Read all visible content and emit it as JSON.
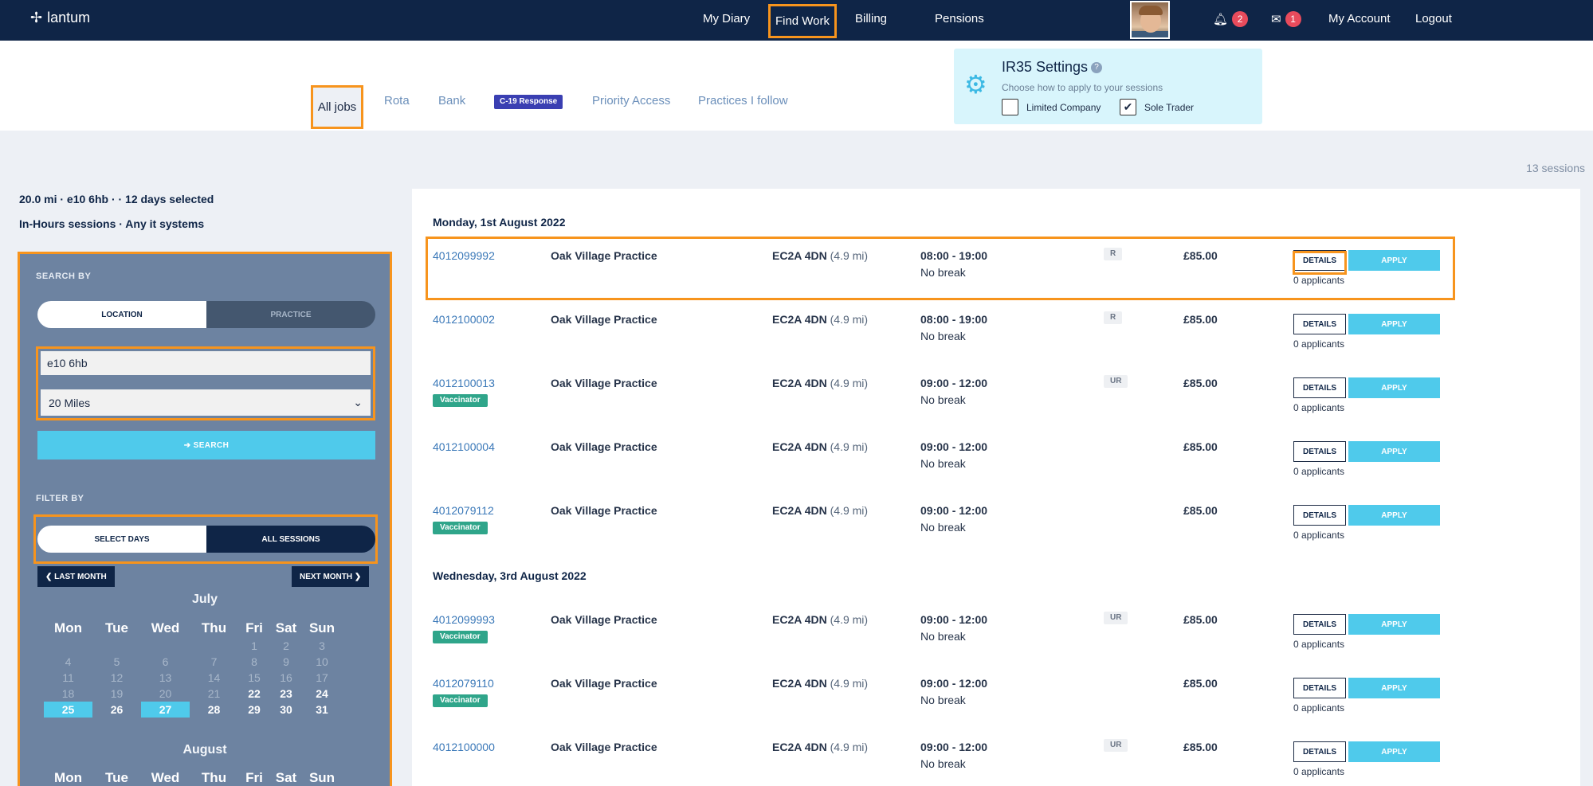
{
  "brand": "lantum",
  "nav": {
    "my_diary": "My Diary",
    "find_work": "Find Work",
    "billing": "Billing",
    "pensions": "Pensions",
    "notifications_count": "2",
    "messages_count": "1",
    "my_account": "My Account",
    "logout": "Logout"
  },
  "tabs": {
    "all_jobs": "All jobs",
    "rota": "Rota",
    "bank": "Bank",
    "c19": "C-19 Response",
    "priority_access": "Priority Access",
    "practices_follow": "Practices I follow"
  },
  "ir35": {
    "title": "IR35 Settings",
    "help": "?",
    "subtitle": "Choose how to apply to your sessions",
    "limited_company": "Limited Company",
    "sole_trader": "Sole Trader",
    "limited_checked": false,
    "sole_checked": true
  },
  "sessions_count": "13 sessions",
  "summary": {
    "line1": "20.0 mi · e10 6hb · · 12 days selected",
    "line2": "In-Hours sessions · Any it systems"
  },
  "search_panel": {
    "search_by": "SEARCH BY",
    "location": "LOCATION",
    "practice": "PRACTICE",
    "location_value": "e10 6hb",
    "radius": "20 Miles",
    "search_button": "➔ SEARCH",
    "filter_by": "FILTER BY",
    "select_days": "SELECT DAYS",
    "all_sessions": "ALL SESSIONS",
    "last_month": "❮ LAST MONTH",
    "next_month": "NEXT MONTH ❯"
  },
  "calendar": {
    "weekdays": [
      "Mon",
      "Tue",
      "Wed",
      "Thu",
      "Fri",
      "Sat",
      "Sun"
    ],
    "months": [
      {
        "name": "July",
        "weeks": [
          [
            {
              "d": "",
              "s": ""
            },
            {
              "d": "",
              "s": ""
            },
            {
              "d": "",
              "s": ""
            },
            {
              "d": "",
              "s": ""
            },
            {
              "d": "1",
              "s": "past"
            },
            {
              "d": "2",
              "s": "past"
            },
            {
              "d": "3",
              "s": "past"
            }
          ],
          [
            {
              "d": "4",
              "s": "past"
            },
            {
              "d": "5",
              "s": "past"
            },
            {
              "d": "6",
              "s": "past"
            },
            {
              "d": "7",
              "s": "past"
            },
            {
              "d": "8",
              "s": "past"
            },
            {
              "d": "9",
              "s": "past"
            },
            {
              "d": "10",
              "s": "past"
            }
          ],
          [
            {
              "d": "11",
              "s": "past"
            },
            {
              "d": "12",
              "s": "past"
            },
            {
              "d": "13",
              "s": "past"
            },
            {
              "d": "14",
              "s": "past"
            },
            {
              "d": "15",
              "s": "past"
            },
            {
              "d": "16",
              "s": "past"
            },
            {
              "d": "17",
              "s": "past"
            }
          ],
          [
            {
              "d": "18",
              "s": "past"
            },
            {
              "d": "19",
              "s": "past"
            },
            {
              "d": "20",
              "s": "past"
            },
            {
              "d": "21",
              "s": "past"
            },
            {
              "d": "22",
              "s": "avail"
            },
            {
              "d": "23",
              "s": "avail"
            },
            {
              "d": "24",
              "s": "avail"
            }
          ],
          [
            {
              "d": "25",
              "s": "sel"
            },
            {
              "d": "26",
              "s": "avail"
            },
            {
              "d": "27",
              "s": "sel"
            },
            {
              "d": "28",
              "s": "avail"
            },
            {
              "d": "29",
              "s": "avail"
            },
            {
              "d": "30",
              "s": "avail"
            },
            {
              "d": "31",
              "s": "avail"
            }
          ]
        ]
      },
      {
        "name": "August",
        "weeks": []
      }
    ]
  },
  "groups": [
    {
      "date": "Monday, 1st August 2022",
      "sessions": [
        {
          "id": "4012099992",
          "vaccinator": false,
          "practice": "Oak Village Practice",
          "postcode": "EC2A 4DN",
          "distance": "(4.9 mi)",
          "time": "08:00 - 19:00",
          "break": "No break",
          "tag": "R",
          "price": "£85.00",
          "details": "DETAILS",
          "apply": "APPLY",
          "applicants": "0 applicants"
        },
        {
          "id": "4012100002",
          "vaccinator": false,
          "practice": "Oak Village Practice",
          "postcode": "EC2A 4DN",
          "distance": "(4.9 mi)",
          "time": "08:00 - 19:00",
          "break": "No break",
          "tag": "R",
          "price": "£85.00",
          "details": "DETAILS",
          "apply": "APPLY",
          "applicants": "0 applicants"
        },
        {
          "id": "4012100013",
          "vaccinator": true,
          "practice": "Oak Village Practice",
          "postcode": "EC2A 4DN",
          "distance": "(4.9 mi)",
          "time": "09:00 - 12:00",
          "break": "No break",
          "tag": "UR",
          "price": "£85.00",
          "details": "DETAILS",
          "apply": "APPLY",
          "applicants": "0 applicants"
        },
        {
          "id": "4012100004",
          "vaccinator": false,
          "practice": "Oak Village Practice",
          "postcode": "EC2A 4DN",
          "distance": "(4.9 mi)",
          "time": "09:00 - 12:00",
          "break": "No break",
          "tag": "",
          "price": "£85.00",
          "details": "DETAILS",
          "apply": "APPLY",
          "applicants": "0 applicants"
        },
        {
          "id": "4012079112",
          "vaccinator": true,
          "practice": "Oak Village Practice",
          "postcode": "EC2A 4DN",
          "distance": "(4.9 mi)",
          "time": "09:00 - 12:00",
          "break": "No break",
          "tag": "",
          "price": "£85.00",
          "details": "DETAILS",
          "apply": "APPLY",
          "applicants": "0 applicants"
        }
      ]
    },
    {
      "date": "Wednesday, 3rd August 2022",
      "sessions": [
        {
          "id": "4012099993",
          "vaccinator": true,
          "practice": "Oak Village Practice",
          "postcode": "EC2A 4DN",
          "distance": "(4.9 mi)",
          "time": "09:00 - 12:00",
          "break": "No break",
          "tag": "UR",
          "price": "£85.00",
          "details": "DETAILS",
          "apply": "APPLY",
          "applicants": "0 applicants"
        },
        {
          "id": "4012079110",
          "vaccinator": true,
          "practice": "Oak Village Practice",
          "postcode": "EC2A 4DN",
          "distance": "(4.9 mi)",
          "time": "09:00 - 12:00",
          "break": "No break",
          "tag": "",
          "price": "£85.00",
          "details": "DETAILS",
          "apply": "APPLY",
          "applicants": "0 applicants"
        },
        {
          "id": "4012100000",
          "vaccinator": false,
          "practice": "Oak Village Practice",
          "postcode": "EC2A 4DN",
          "distance": "(4.9 mi)",
          "time": "09:00 - 12:00",
          "break": "No break",
          "tag": "UR",
          "price": "£85.00",
          "details": "DETAILS",
          "apply": "APPLY",
          "applicants": "0 applicants"
        }
      ]
    }
  ],
  "vaccinator_label": "Vaccinator",
  "colors": {
    "navbar": "#0f2547",
    "accent": "#4fcaeb",
    "highlight": "#f7941d",
    "panel": "#6d83a1",
    "vaccinator": "#2fa58a"
  }
}
